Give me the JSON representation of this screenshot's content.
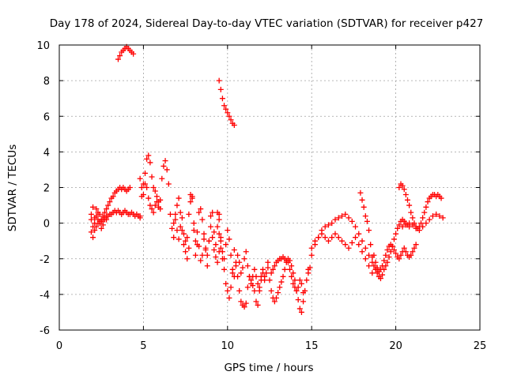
{
  "chart_data": {
    "type": "scatter",
    "title": "Day 178 of 2024, Sidereal Day-to-day VTEC variation (SDTVAR) for receiver p427",
    "xlabel": "GPS time / hours",
    "ylabel": "SDTVAR / TECUs",
    "xlim": [
      0,
      25
    ],
    "ylim": [
      -6,
      10
    ],
    "xticks": [
      "0",
      "5",
      "10",
      "15",
      "20",
      "25"
    ],
    "yticks": [
      "-6",
      "-4",
      "-2",
      "0",
      "2",
      "4",
      "6",
      "8",
      "10"
    ],
    "grid": true,
    "marker": "+",
    "colors": {
      "series": "#ff0000",
      "grid": "#a0a0a0",
      "axis": "#000000"
    },
    "series": [
      {
        "name": "SDTVAR",
        "segments": [
          {
            "x": [
              1.9,
              2.0,
              2.1,
              2.2,
              2.3,
              2.4,
              2.5,
              2.6,
              2.7,
              2.8,
              2.9,
              3.0,
              3.1,
              3.2,
              3.3,
              3.4,
              3.5,
              3.6,
              3.7,
              3.8,
              3.9,
              4.0,
              4.1,
              4.2,
              4.3,
              4.4,
              4.5,
              4.6,
              4.7,
              4.8
            ],
            "y": [
              -0.5,
              -0.8,
              -0.4,
              -0.2,
              0.0,
              0.1,
              0.1,
              0.2,
              0.3,
              0.2,
              0.4,
              0.5,
              0.5,
              0.6,
              0.7,
              0.6,
              0.7,
              0.6,
              0.5,
              0.6,
              0.7,
              0.6,
              0.5,
              0.5,
              0.6,
              0.5,
              0.4,
              0.5,
              0.4,
              0.3
            ]
          },
          {
            "x": [
              1.9,
              2.0,
              2.1,
              2.2,
              2.3,
              2.4,
              2.5,
              2.6,
              2.7,
              2.8,
              2.9,
              3.0,
              3.1,
              3.2,
              3.3,
              3.4,
              3.5,
              3.6,
              3.7,
              3.8,
              3.9,
              4.0,
              4.1,
              4.2
            ],
            "y": [
              0.5,
              0.9,
              0.3,
              0.8,
              0.6,
              0.5,
              0.2,
              0.4,
              0.6,
              0.8,
              1.0,
              1.2,
              1.4,
              1.5,
              1.7,
              1.8,
              1.9,
              2.0,
              1.9,
              2.0,
              1.9,
              1.8,
              1.9,
              2.0
            ]
          },
          {
            "x": [
              1.9,
              2.0,
              2.1,
              2.2,
              2.3,
              2.4,
              2.5,
              2.6,
              2.7,
              2.8
            ],
            "y": [
              0.2,
              -0.2,
              0.0,
              0.4,
              0.2,
              0.0,
              -0.3,
              -0.1,
              0.2,
              0.4
            ]
          },
          {
            "x": [
              3.5,
              3.6,
              3.7,
              3.8,
              3.9,
              4.0,
              4.1,
              4.2,
              4.3,
              4.4
            ],
            "y": [
              9.2,
              9.4,
              9.6,
              9.7,
              9.8,
              9.9,
              9.8,
              9.7,
              9.6,
              9.5
            ]
          },
          {
            "x": [
              4.8,
              4.9,
              5.0,
              5.1,
              5.2,
              5.3,
              5.4,
              5.5,
              5.6,
              5.7,
              5.8,
              5.9,
              6.0,
              6.1,
              6.2,
              6.3,
              6.4,
              6.5
            ],
            "y": [
              0.4,
              1.5,
              2.2,
              2.8,
              3.6,
              3.8,
              3.4,
              2.6,
              2.0,
              1.8,
              1.5,
              1.2,
              1.3,
              2.5,
              3.2,
              3.5,
              3.0,
              2.2
            ]
          },
          {
            "x": [
              4.8,
              4.9,
              5.0,
              5.1,
              5.2,
              5.3,
              5.4,
              5.5,
              5.6,
              5.7,
              5.8,
              5.9,
              6.0
            ],
            "y": [
              2.5,
              2.0,
              1.6,
              2.2,
              2.0,
              1.4,
              1.0,
              0.8,
              0.6,
              1.0,
              1.2,
              0.9,
              0.8
            ]
          },
          {
            "x": [
              6.6,
              6.7,
              6.8,
              6.9,
              7.0,
              7.1,
              7.2,
              7.3,
              7.4,
              7.5,
              7.6,
              7.7,
              7.8,
              7.9,
              8.0,
              8.1,
              8.2,
              8.3,
              8.4,
              8.5,
              8.6,
              8.7,
              8.8,
              8.9,
              9.0,
              9.1,
              9.2,
              9.3,
              9.4,
              9.5
            ],
            "y": [
              0.5,
              -0.3,
              -0.8,
              0.2,
              1.0,
              1.4,
              0.6,
              -0.4,
              -1.2,
              -1.6,
              -2.0,
              -1.4,
              1.6,
              1.4,
              -0.4,
              -1.8,
              -1.2,
              0.6,
              0.8,
              0.2,
              -0.6,
              -1.5,
              -2.4,
              -1.0,
              0.4,
              0.6,
              -0.5,
              -1.2,
              -0.2,
              0.5
            ]
          },
          {
            "x": [
              6.8,
              6.9,
              7.0,
              7.1,
              7.2,
              7.3,
              7.4,
              7.5,
              7.6,
              7.7,
              7.8,
              7.9,
              8.0,
              8.1,
              8.2,
              8.3,
              8.4,
              8.5,
              8.6,
              8.7,
              8.8,
              8.9,
              9.0,
              9.1,
              9.2,
              9.3,
              9.4,
              9.5,
              9.6
            ],
            "y": [
              0.0,
              0.5,
              -0.4,
              -0.9,
              -0.2,
              0.3,
              -0.6,
              -1.0,
              -0.8,
              0.5,
              1.2,
              1.5,
              0.0,
              -1.0,
              -0.5,
              -1.3,
              -2.1,
              -1.8,
              -0.9,
              -1.4,
              -1.8,
              -1.0,
              -0.2,
              -0.8,
              -1.5,
              -1.9,
              -2.2,
              -1.6,
              -1.0
            ]
          },
          {
            "x": [
              9.5,
              9.6,
              9.7,
              9.8,
              9.9,
              10.0,
              10.1,
              10.2,
              10.3,
              10.4,
              10.5,
              10.6,
              10.7,
              10.8,
              10.9,
              11.0,
              11.1,
              11.2,
              11.3,
              11.4,
              11.5,
              11.6,
              11.7,
              11.8,
              11.9,
              12.0,
              12.1,
              12.2,
              12.3,
              12.4
            ],
            "y": [
              -0.6,
              -1.4,
              -2.0,
              -2.6,
              -3.4,
              -3.8,
              -4.2,
              -3.6,
              -2.8,
              -1.5,
              -2.2,
              -3.0,
              -3.8,
              -4.4,
              -4.6,
              -4.7,
              -4.5,
              -3.6,
              -3.0,
              -3.2,
              -3.5,
              -3.8,
              -4.4,
              -4.6,
              -3.8,
              -3.0,
              -2.6,
              -3.2,
              -2.8,
              -2.2
            ]
          },
          {
            "x": [
              9.4,
              9.5,
              9.6,
              9.7,
              9.8,
              9.9,
              10.0,
              10.1,
              10.2,
              10.3,
              10.4,
              10.5,
              10.6,
              10.7,
              10.8,
              10.9,
              11.0,
              11.1,
              11.2,
              11.3,
              11.4,
              11.5,
              11.6,
              11.7,
              11.8,
              11.9,
              12.0,
              12.1,
              12.2
            ],
            "y": [
              0.6,
              0.2,
              -0.8,
              -1.6,
              -2.0,
              -1.2,
              -0.4,
              -0.9,
              -1.8,
              -2.6,
              -3.0,
              -2.4,
              -1.8,
              -2.2,
              -2.8,
              -2.5,
              -2.0,
              -1.6,
              -2.4,
              -3.0,
              -3.4,
              -3.0,
              -2.6,
              -3.0,
              -3.4,
              -3.6,
              -3.2,
              -2.8,
              -3.0
            ]
          },
          {
            "x": [
              9.5,
              9.6,
              9.7,
              9.8,
              9.9,
              10.0,
              10.1,
              10.2,
              10.3,
              10.4
            ],
            "y": [
              8.0,
              7.5,
              7.0,
              6.6,
              6.4,
              6.2,
              6.0,
              5.8,
              5.6,
              5.5
            ]
          },
          {
            "x": [
              12.4,
              12.5,
              12.6,
              12.7,
              12.8,
              12.9,
              13.0,
              13.1,
              13.2,
              13.3,
              13.4,
              13.5,
              13.6,
              13.7,
              13.8,
              13.9,
              14.0,
              14.1,
              14.2,
              14.3,
              14.4,
              14.5,
              14.6,
              14.7,
              14.8,
              14.9
            ],
            "y": [
              -2.5,
              -3.2,
              -3.8,
              -4.2,
              -4.4,
              -4.2,
              -3.9,
              -3.6,
              -3.3,
              -3.0,
              -2.6,
              -2.2,
              -2.0,
              -2.1,
              -2.4,
              -2.8,
              -3.2,
              -3.8,
              -4.3,
              -4.8,
              -5.0,
              -4.4,
              -3.8,
              -3.2,
              -2.8,
              -2.5
            ]
          },
          {
            "x": [
              12.6,
              12.7,
              12.8,
              12.9,
              13.0,
              13.1,
              13.2,
              13.3,
              13.4,
              13.5,
              13.6,
              13.7,
              13.8,
              13.9,
              14.0,
              14.1,
              14.2,
              14.3,
              14.4,
              14.5
            ],
            "y": [
              -2.8,
              -2.6,
              -2.4,
              -2.2,
              -2.1,
              -2.0,
              -2.0,
              -1.9,
              -2.0,
              -2.1,
              -2.2,
              -2.6,
              -3.0,
              -3.4,
              -3.6,
              -3.8,
              -3.6,
              -3.2,
              -3.4,
              -3.9
            ]
          },
          {
            "x": [
              14.8,
              15.0,
              15.2,
              15.4,
              15.6,
              15.8,
              16.0,
              16.2,
              16.4,
              16.6,
              16.8,
              17.0,
              17.2,
              17.4,
              17.6,
              17.8,
              18.0,
              18.2,
              18.4,
              18.6,
              18.8
            ],
            "y": [
              -2.6,
              -1.8,
              -1.2,
              -0.8,
              -0.4,
              -0.2,
              -0.1,
              0.0,
              0.2,
              0.3,
              0.4,
              0.5,
              0.3,
              0.1,
              -0.2,
              -0.6,
              -1.0,
              -1.4,
              -1.8,
              -2.2,
              -2.6
            ]
          },
          {
            "x": [
              15.0,
              15.2,
              15.4,
              15.6,
              15.8,
              16.0,
              16.2,
              16.4,
              16.6,
              16.8,
              17.0,
              17.2,
              17.4,
              17.6,
              17.8,
              18.0,
              18.2,
              18.4,
              18.6
            ],
            "y": [
              -1.4,
              -1.0,
              -0.8,
              -0.6,
              -0.8,
              -1.0,
              -0.8,
              -0.6,
              -0.8,
              -1.0,
              -1.2,
              -1.4,
              -1.1,
              -0.8,
              -1.2,
              -1.6,
              -2.0,
              -2.4,
              -2.8
            ]
          },
          {
            "x": [
              17.9,
              18.0,
              18.1,
              18.2,
              18.3,
              18.4,
              18.5,
              18.6,
              18.7,
              18.8,
              18.9,
              19.0,
              19.1,
              19.2,
              19.3,
              19.4,
              19.5,
              19.6,
              19.7,
              19.8,
              19.9,
              20.0,
              20.1,
              20.2,
              20.3,
              20.4,
              20.5,
              20.6,
              20.7,
              20.8
            ],
            "y": [
              1.7,
              1.3,
              0.9,
              0.4,
              0.1,
              -0.4,
              -1.2,
              -1.9,
              -2.4,
              -2.6,
              -2.8,
              -3.0,
              -3.1,
              -2.9,
              -2.6,
              -2.4,
              -2.2,
              -1.9,
              -1.6,
              -1.3,
              -0.9,
              -0.6,
              -0.3,
              -0.1,
              0.1,
              0.2,
              0.1,
              0.0,
              -0.1,
              -0.2
            ]
          },
          {
            "x": [
              18.7,
              18.8,
              18.9,
              19.0,
              19.1,
              19.2,
              19.3,
              19.4,
              19.5,
              19.6,
              19.7,
              19.8,
              19.9,
              20.0,
              20.1,
              20.2,
              20.3,
              20.4,
              20.5,
              20.6,
              20.7,
              20.8,
              20.9,
              21.0,
              21.1,
              21.2
            ],
            "y": [
              -1.8,
              -2.2,
              -2.5,
              -2.7,
              -2.6,
              -2.4,
              -2.1,
              -1.8,
              -1.5,
              -1.3,
              -1.2,
              -1.3,
              -1.5,
              -1.7,
              -1.9,
              -2.0,
              -1.8,
              -1.6,
              -1.4,
              -1.6,
              -1.8,
              -1.9,
              -1.8,
              -1.6,
              -1.4,
              -1.2
            ]
          },
          {
            "x": [
              20.2,
              20.3,
              20.4,
              20.5,
              20.6,
              20.7,
              20.8,
              20.9,
              21.0,
              21.1,
              21.2,
              21.3,
              21.4,
              21.5,
              21.6,
              21.7,
              21.8,
              21.9,
              22.0,
              22.1,
              22.2,
              22.3,
              22.4,
              22.5,
              22.6,
              22.7
            ],
            "y": [
              2.0,
              2.2,
              2.1,
              1.9,
              1.6,
              1.3,
              1.0,
              0.6,
              0.3,
              0.0,
              -0.2,
              -0.3,
              -0.2,
              0.0,
              0.3,
              0.6,
              0.9,
              1.2,
              1.4,
              1.5,
              1.6,
              1.6,
              1.5,
              1.6,
              1.5,
              1.4
            ]
          },
          {
            "x": [
              20.4,
              20.6,
              20.8,
              21.0,
              21.2,
              21.4,
              21.6,
              21.8,
              22.0,
              22.2,
              22.4,
              22.6,
              22.8
            ],
            "y": [
              -0.2,
              -0.1,
              0.0,
              -0.1,
              -0.3,
              -0.4,
              -0.2,
              0.0,
              0.2,
              0.4,
              0.5,
              0.4,
              0.3
            ]
          }
        ]
      }
    ]
  }
}
